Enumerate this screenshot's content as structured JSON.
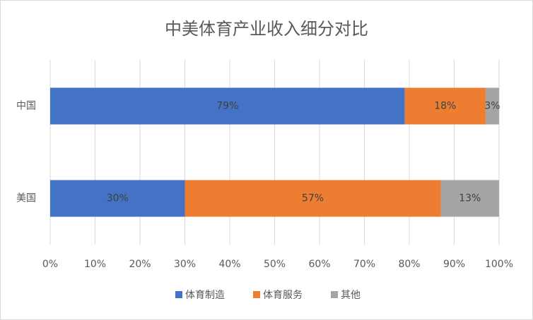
{
  "chart_data": {
    "type": "stacked-bar-horizontal",
    "title": "中美体育产业收入细分对比",
    "categories": [
      "中国",
      "美国"
    ],
    "series": [
      {
        "name": "体育制造",
        "color": "#4472c4",
        "values": [
          79,
          30
        ],
        "value_labels": [
          "79%",
          "30%"
        ]
      },
      {
        "name": "体育服务",
        "color": "#ed7d31",
        "values": [
          18,
          57
        ],
        "value_labels": [
          "18%",
          "57%"
        ]
      },
      {
        "name": "其他",
        "color": "#a5a5a5",
        "values": [
          3,
          13
        ],
        "value_labels": [
          "3%",
          "13%"
        ]
      }
    ],
    "xlim": [
      0,
      100
    ],
    "xticks": [
      {
        "value": 0,
        "label": "0%"
      },
      {
        "value": 10,
        "label": "10%"
      },
      {
        "value": 20,
        "label": "20%"
      },
      {
        "value": 30,
        "label": "30%"
      },
      {
        "value": 40,
        "label": "40%"
      },
      {
        "value": 50,
        "label": "50%"
      },
      {
        "value": 60,
        "label": "60%"
      },
      {
        "value": 70,
        "label": "70%"
      },
      {
        "value": 80,
        "label": "80%"
      },
      {
        "value": 90,
        "label": "90%"
      },
      {
        "value": 100,
        "label": "100%"
      }
    ],
    "grid": true,
    "legend": "bottom"
  }
}
